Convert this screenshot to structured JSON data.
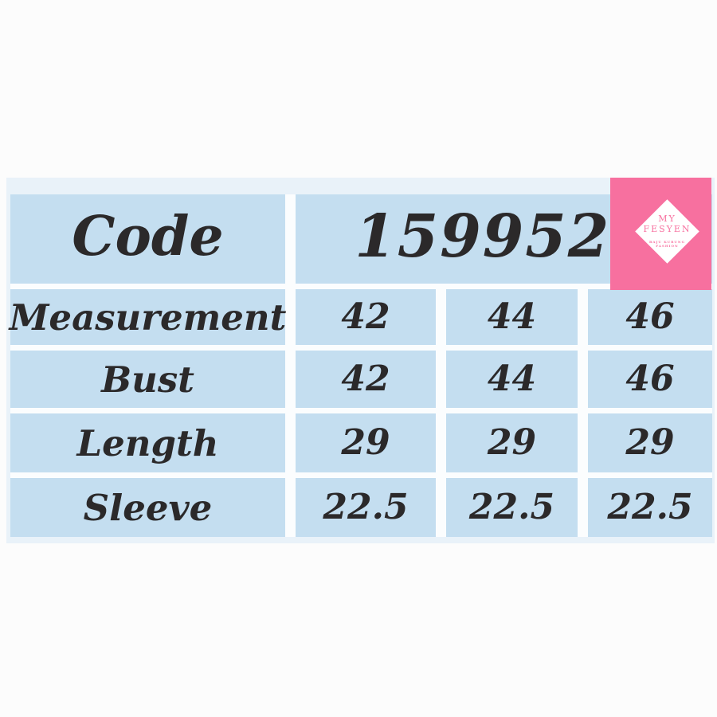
{
  "colors": {
    "page_background": "#fcfcfc",
    "panel_tint": "#e9f2f9",
    "cell_blue": "#c4def0",
    "gutter_white": "#fbfdfe",
    "text_dark": "#2b292a",
    "brand_pink": "#f7709f"
  },
  "chart_data": {
    "type": "table",
    "header": {
      "label": "Code",
      "value": "1599526"
    },
    "rows": [
      {
        "label": "Measurement",
        "values": [
          "42",
          "44",
          "46"
        ]
      },
      {
        "label": "Bust",
        "values": [
          "42",
          "44",
          "46"
        ]
      },
      {
        "label": "Length",
        "values": [
          "29",
          "29",
          "29"
        ]
      },
      {
        "label": "Sleeve",
        "values": [
          "22.5",
          "22.5",
          "22.5"
        ]
      }
    ]
  },
  "logo": {
    "line1": "MY",
    "line2": "FESYEN",
    "tagline_line1": "BAJU KURUNG",
    "tagline_line2": "FASHION"
  }
}
